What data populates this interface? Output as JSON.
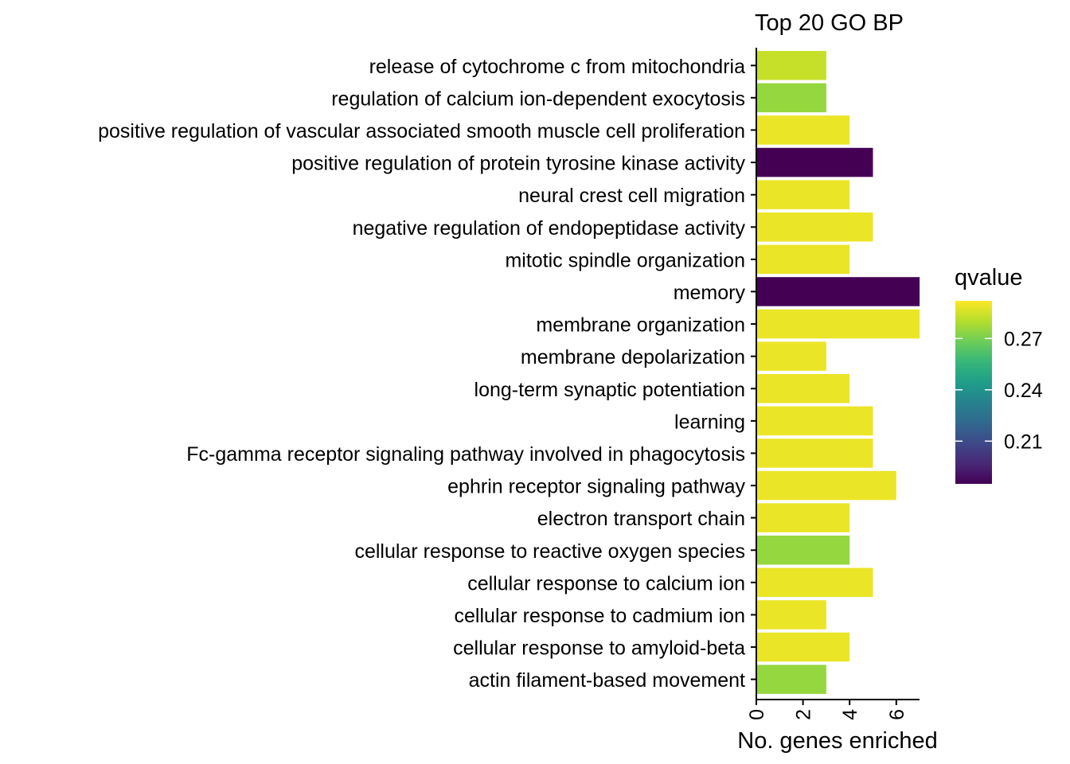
{
  "chart_data": {
    "type": "bar",
    "orientation": "horizontal",
    "title": "Top 20 GO BP",
    "xlabel": "No. genes enriched",
    "ylabel": "",
    "xlim": [
      0,
      7
    ],
    "x_ticks": [
      0,
      2,
      4,
      6
    ],
    "x_tick_labels": [
      "0",
      "2",
      "4",
      "6"
    ],
    "grid": false,
    "categories": [
      "release of cytochrome c from mitochondria",
      "regulation of calcium ion-dependent exocytosis",
      "positive regulation of vascular associated smooth muscle cell proliferation",
      "positive regulation of protein tyrosine kinase activity",
      "neural crest cell migration",
      "negative regulation of endopeptidase activity",
      "mitotic spindle organization",
      "memory",
      "membrane organization",
      "membrane depolarization",
      "long-term synaptic potentiation",
      "learning",
      "Fc-gamma receptor signaling pathway involved in phagocytosis",
      "ephrin receptor signaling pathway",
      "electron transport chain",
      "cellular response to reactive oxygen species",
      "cellular response to calcium ion",
      "cellular response to cadmium ion",
      "cellular response to amyloid-beta",
      "actin filament-based movement"
    ],
    "values": [
      3,
      3,
      4,
      5,
      4,
      5,
      4,
      7,
      7,
      3,
      4,
      5,
      5,
      6,
      4,
      4,
      5,
      3,
      4,
      3
    ],
    "qvalue": [
      0.283,
      0.275,
      0.289,
      0.185,
      0.289,
      0.289,
      0.289,
      0.185,
      0.289,
      0.289,
      0.289,
      0.289,
      0.289,
      0.289,
      0.289,
      0.275,
      0.289,
      0.289,
      0.289,
      0.275
    ],
    "legend": {
      "title": "qvalue",
      "placement": "right",
      "range": [
        0.185,
        0.292
      ],
      "ticks": [
        0.21,
        0.24,
        0.27
      ],
      "tick_labels": [
        "0.21",
        "0.24",
        "0.27"
      ],
      "colormap": "viridis",
      "colors": [
        "#440154",
        "#482878",
        "#3E4989",
        "#31688E",
        "#26828E",
        "#1F9E89",
        "#35B779",
        "#6DCD59",
        "#B4DE2C",
        "#FDE725"
      ]
    }
  }
}
